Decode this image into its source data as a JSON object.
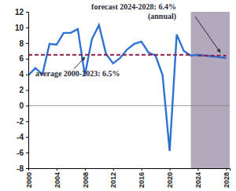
{
  "chart_data": {
    "type": "line",
    "x": [
      2000,
      2001,
      2002,
      2003,
      2004,
      2005,
      2006,
      2007,
      2008,
      2009,
      2010,
      2011,
      2012,
      2013,
      2014,
      2015,
      2016,
      2017,
      2018,
      2019,
      2020,
      2021,
      2022,
      2023,
      2024,
      2025,
      2026,
      2027,
      2028
    ],
    "values": [
      3.9,
      4.8,
      4.0,
      7.9,
      7.8,
      9.3,
      9.3,
      9.8,
      3.9,
      8.5,
      10.3,
      6.6,
      5.4,
      6.1,
      7.2,
      7.9,
      8.2,
      6.8,
      6.4,
      3.9,
      -5.8,
      9.1,
      7.0,
      6.4,
      6.5,
      6.4,
      6.3,
      6.2,
      6.1
    ],
    "color": "#2e72d2",
    "xlim": [
      2000,
      2028.5
    ],
    "xticks": [
      2000,
      2004,
      2008,
      2012,
      2016,
      2020,
      2024,
      2028
    ],
    "ylim": [
      -8,
      12
    ],
    "yticks": [
      -8,
      -6,
      -4,
      -2,
      0,
      2,
      4,
      6,
      8,
      10,
      12
    ],
    "grid": false,
    "shaded_region": {
      "x": [
        2023,
        2028.5
      ],
      "color": "#b2a9bd"
    },
    "reference_lines": [
      {
        "label": "average 2000-2023: 6.5%",
        "value": 6.5,
        "x": [
          2000,
          2023
        ],
        "color": "#8b1c4b",
        "line_style": "dashed"
      },
      {
        "label": "forecast 2024-2028: 6.4%",
        "note": "(annual)",
        "value": 6.4,
        "x": [
          2024,
          2028
        ],
        "color": "#8b1c4b",
        "line_style": "dashed"
      }
    ]
  }
}
